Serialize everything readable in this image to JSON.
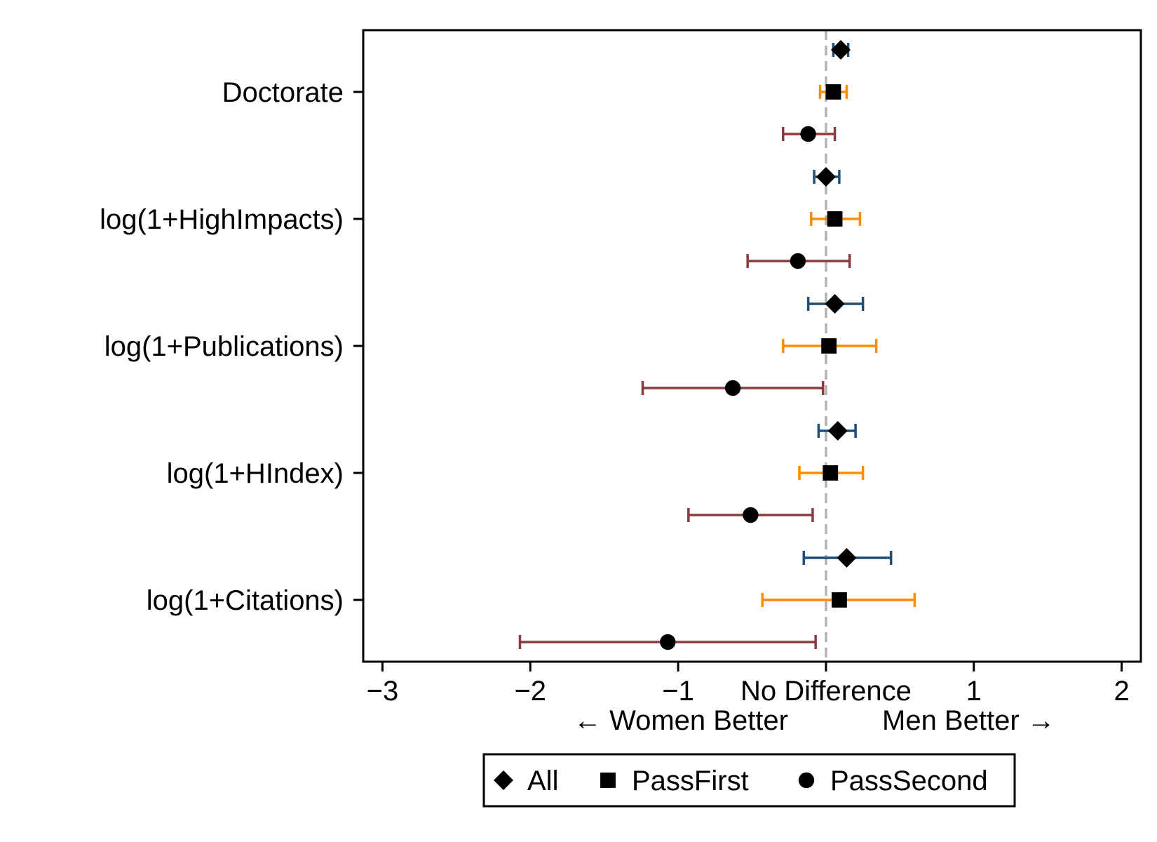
{
  "chart_data": {
    "type": "scatter",
    "subtype": "coefficient-plot-horizontal",
    "categories": [
      "Doctorate",
      "log(1+HighImpacts)",
      "log(1+Publications)",
      "log(1+HIndex)",
      "log(1+Citations)"
    ],
    "series": [
      {
        "name": "All",
        "marker": "diamond",
        "ci_color": "#1f4e79",
        "points": [
          {
            "estimate": 0.1,
            "lower": 0.05,
            "upper": 0.15
          },
          {
            "estimate": 0.0,
            "lower": -0.08,
            "upper": 0.09
          },
          {
            "estimate": 0.06,
            "lower": -0.12,
            "upper": 0.25
          },
          {
            "estimate": 0.08,
            "lower": -0.05,
            "upper": 0.2
          },
          {
            "estimate": 0.14,
            "lower": -0.15,
            "upper": 0.44
          }
        ]
      },
      {
        "name": "PassFirst",
        "marker": "square",
        "ci_color": "#ff8c00",
        "points": [
          {
            "estimate": 0.05,
            "lower": -0.04,
            "upper": 0.14
          },
          {
            "estimate": 0.06,
            "lower": -0.1,
            "upper": 0.23
          },
          {
            "estimate": 0.02,
            "lower": -0.29,
            "upper": 0.34
          },
          {
            "estimate": 0.03,
            "lower": -0.18,
            "upper": 0.25
          },
          {
            "estimate": 0.09,
            "lower": -0.43,
            "upper": 0.6
          }
        ]
      },
      {
        "name": "PassSecond",
        "marker": "circle",
        "ci_color": "#8b3a3f",
        "points": [
          {
            "estimate": -0.12,
            "lower": -0.29,
            "upper": 0.06
          },
          {
            "estimate": -0.19,
            "lower": -0.53,
            "upper": 0.16
          },
          {
            "estimate": -0.63,
            "lower": -1.24,
            "upper": -0.02
          },
          {
            "estimate": -0.51,
            "lower": -0.93,
            "upper": -0.09
          },
          {
            "estimate": -1.07,
            "lower": -2.07,
            "upper": -0.07
          }
        ]
      }
    ],
    "xlim": [
      -3.13,
      2.13
    ],
    "xticks": [
      -3,
      -2,
      -1,
      1,
      2
    ],
    "xtick_labels": [
      "−3",
      "−2",
      "−1",
      "1",
      "2"
    ],
    "reference_line": {
      "x": 0,
      "label": "No Difference",
      "style": "dashed",
      "color": "#b3b3b3"
    },
    "x_side_labels": {
      "left": "← Women Better",
      "right": "Men Better →"
    },
    "legend": {
      "position": "bottom",
      "entries": [
        "All",
        "PassFirst",
        "PassSecond"
      ]
    },
    "grid": false
  }
}
